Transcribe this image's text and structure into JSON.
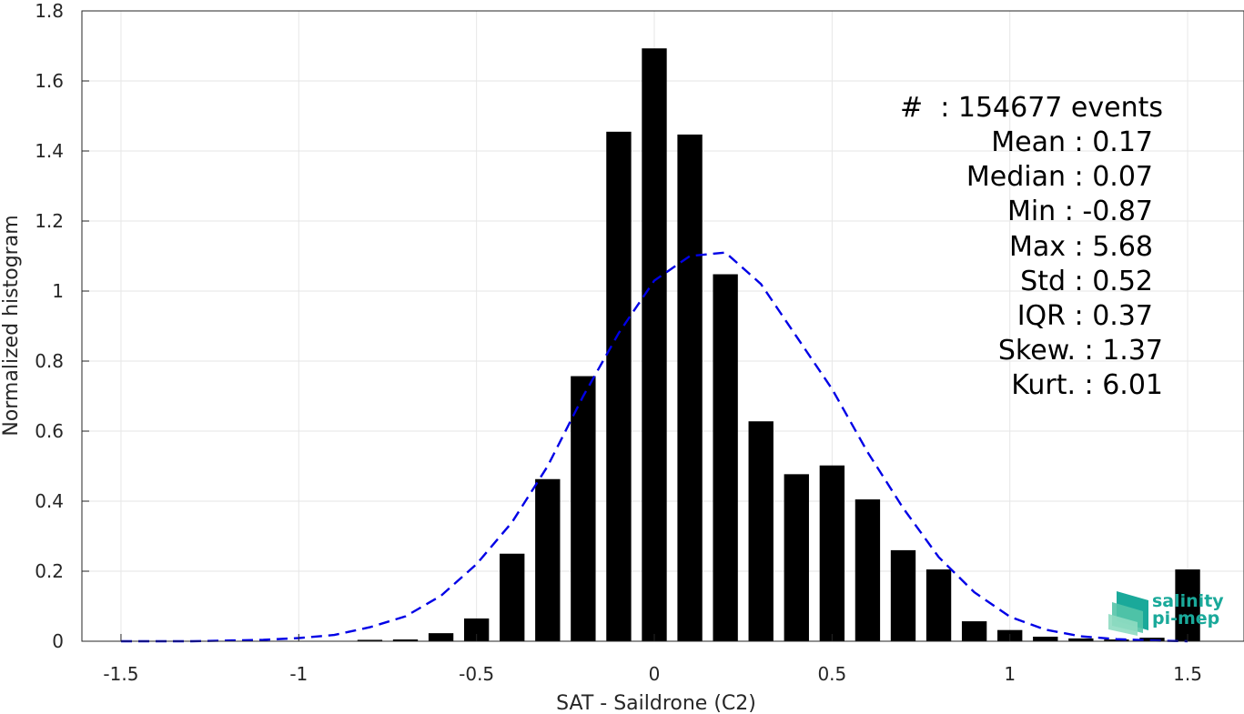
{
  "chart_data": {
    "type": "bar",
    "xlabel": "SAT - Saildrone (C2)",
    "ylabel": "Normalized histogram",
    "xlim": [
      -1.5,
      1.5
    ],
    "ylim": [
      0,
      1.8
    ],
    "xticks": [
      -1.5,
      -1,
      -0.5,
      0,
      0.5,
      1,
      1.5
    ],
    "xtick_labels": [
      "-1.5",
      "-1",
      "-0.5",
      "0",
      "0.5",
      "1",
      "1.5"
    ],
    "yticks": [
      0,
      0.2,
      0.4,
      0.6,
      0.8,
      1,
      1.2,
      1.4,
      1.6,
      1.8
    ],
    "ytick_labels": [
      "0",
      "0.2",
      "0.4",
      "0.6",
      "0.8",
      "1",
      "1.2",
      "1.4",
      "1.6",
      "1.8"
    ],
    "grid": true,
    "bar_color": "#000000",
    "bins": [
      -1.5,
      -1.4,
      -1.3,
      -1.2,
      -1.1,
      -1.0,
      -0.9,
      -0.8,
      -0.7,
      -0.6,
      -0.5,
      -0.4,
      -0.3,
      -0.2,
      -0.1,
      0.0,
      0.1,
      0.2,
      0.3,
      0.4,
      0.5,
      0.6,
      0.7,
      0.8,
      0.9,
      1.0,
      1.1,
      1.2,
      1.3,
      1.4,
      1.5
    ],
    "values": [
      0,
      0,
      0,
      0,
      0,
      0,
      0.001,
      0.004,
      0.005,
      0.023,
      0.065,
      0.25,
      0.463,
      0.757,
      1.455,
      1.693,
      1.447,
      1.048,
      0.628,
      0.477,
      0.502,
      0.405,
      0.26,
      0.205,
      0.057,
      0.032,
      0.013,
      0.008,
      0.005,
      0.01,
      0.205
    ],
    "fit_curve": {
      "style": "dashed",
      "color": "#0000e6",
      "x": [
        -1.5,
        -1.4,
        -1.3,
        -1.2,
        -1.1,
        -1.0,
        -0.9,
        -0.8,
        -0.7,
        -0.6,
        -0.5,
        -0.4,
        -0.3,
        -0.2,
        -0.1,
        0.0,
        0.1,
        0.2,
        0.3,
        0.4,
        0.5,
        0.6,
        0.7,
        0.8,
        0.9,
        1.0,
        1.1,
        1.2,
        1.3,
        1.4,
        1.5
      ],
      "y": [
        0.0,
        0.0,
        0.0,
        0.002,
        0.004,
        0.009,
        0.018,
        0.04,
        0.071,
        0.13,
        0.22,
        0.34,
        0.5,
        0.7,
        0.88,
        1.03,
        1.1,
        1.11,
        1.02,
        0.87,
        0.72,
        0.54,
        0.38,
        0.24,
        0.14,
        0.07,
        0.033,
        0.014,
        0.006,
        0.002,
        0.0
      ]
    }
  },
  "stats": [
    {
      "label": "#  : 154677 events"
    },
    {
      "label": "Mean : 0.17"
    },
    {
      "label": "Median : 0.07"
    },
    {
      "label": "Min : -0.87"
    },
    {
      "label": "Max : 5.68"
    },
    {
      "label": "Std : 0.52"
    },
    {
      "label": "IQR : 0.37"
    },
    {
      "label": "Skew. : 1.37"
    },
    {
      "label": "Kurt. : 6.01"
    }
  ],
  "logo": {
    "line1": "salinity",
    "line2": "pi-mep",
    "color": "#1aa99a"
  }
}
